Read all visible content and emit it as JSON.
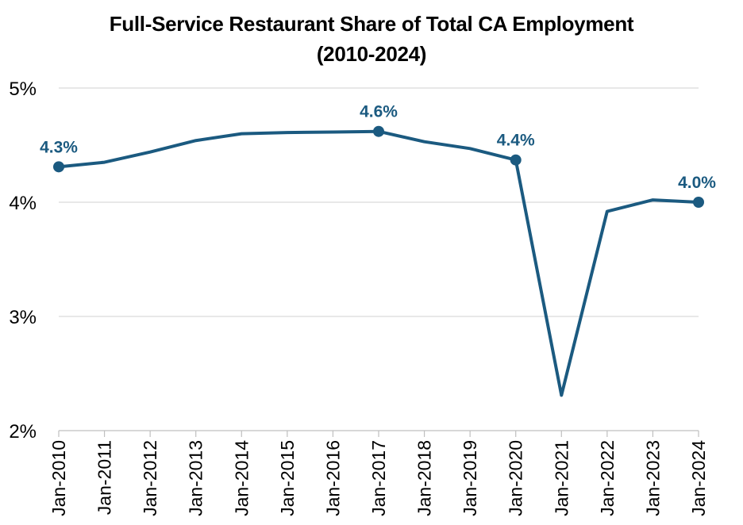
{
  "chart_data": {
    "type": "line",
    "title": "Full-Service Restaurant Share of Total CA Employment",
    "subtitle": "(2010-2024)",
    "xlabel": "",
    "ylabel": "",
    "ylim": [
      2,
      5
    ],
    "y_ticks": [
      {
        "value": 2,
        "label": "2%"
      },
      {
        "value": 3,
        "label": "3%"
      },
      {
        "value": 4,
        "label": "4%"
      },
      {
        "value": 5,
        "label": "5%"
      }
    ],
    "grid": true,
    "legend": "none",
    "line_color": "#1b5a80",
    "categories": [
      "Jan-2010",
      "Jan-2011",
      "Jan-2012",
      "Jan-2013",
      "Jan-2014",
      "Jan-2015",
      "Jan-2016",
      "Jan-2017",
      "Jan-2018",
      "Jan-2019",
      "Jan-2020",
      "Jan-2021",
      "Jan-2022",
      "Jan-2023",
      "Jan-2024"
    ],
    "values": [
      4.31,
      4.35,
      4.44,
      4.54,
      4.6,
      4.61,
      4.615,
      4.62,
      4.53,
      4.47,
      4.37,
      2.31,
      3.92,
      4.02,
      4.0
    ],
    "markers": [
      {
        "index": 0,
        "label": "4.3%"
      },
      {
        "index": 7,
        "label": "4.6%"
      },
      {
        "index": 10,
        "label": "4.4%"
      },
      {
        "index": 14,
        "label": "4.0%"
      }
    ]
  }
}
